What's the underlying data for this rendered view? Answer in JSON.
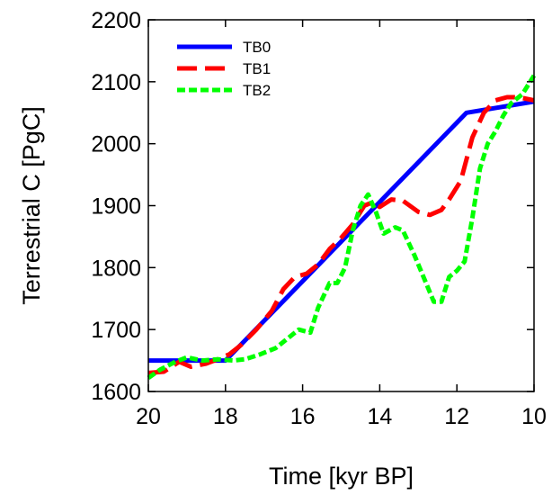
{
  "chart_data": {
    "type": "line",
    "xlabel": "Time [kyr BP]",
    "ylabel": "Terrestrial C [PgC]",
    "xlim": [
      20,
      10
    ],
    "ylim": [
      1600,
      2200
    ],
    "x_ticks": [
      "20",
      "18",
      "16",
      "14",
      "12",
      "10"
    ],
    "y_ticks": [
      "1600",
      "1700",
      "1800",
      "1900",
      "2000",
      "2100",
      "2200"
    ],
    "grid": false,
    "legend_position": "top-left",
    "series": [
      {
        "name": "TB0",
        "color": "#0000ff",
        "style": "solid",
        "x": [
          20,
          18,
          11.75,
          10
        ],
        "y": [
          1650,
          1650,
          2050,
          2068
        ]
      },
      {
        "name": "TB1",
        "color": "#ff0000",
        "style": "dashed",
        "x": [
          20,
          19.6,
          19.2,
          18.9,
          18.5,
          18.2,
          17.9,
          17.6,
          17.2,
          16.8,
          16.5,
          16.2,
          15.9,
          15.6,
          15.3,
          15.0,
          14.7,
          14.4,
          14.2,
          14.0,
          13.7,
          13.4,
          13.0,
          12.7,
          12.4,
          12.2,
          11.9,
          11.6,
          11.3,
          11.0,
          10.7,
          10.4,
          10.0
        ],
        "y": [
          1630,
          1632,
          1648,
          1640,
          1645,
          1652,
          1660,
          1675,
          1700,
          1730,
          1765,
          1785,
          1790,
          1805,
          1830,
          1848,
          1870,
          1900,
          1905,
          1898,
          1910,
          1908,
          1890,
          1885,
          1893,
          1910,
          1940,
          2010,
          2050,
          2070,
          2075,
          2075,
          2070
        ]
      },
      {
        "name": "TB2",
        "color": "#00ff00",
        "style": "dotted",
        "x": [
          20,
          19.7,
          19.3,
          19.0,
          18.6,
          18.2,
          17.8,
          17.5,
          17.1,
          16.7,
          16.3,
          16.1,
          15.8,
          15.6,
          15.3,
          15.1,
          14.9,
          14.7,
          14.5,
          14.3,
          14.1,
          13.9,
          13.6,
          13.4,
          13.1,
          12.9,
          12.6,
          12.4,
          12.2,
          12.0,
          11.8,
          11.6,
          11.4,
          11.2,
          11.0,
          10.8,
          10.6,
          10.3,
          10.0
        ],
        "y": [
          1622,
          1635,
          1648,
          1655,
          1650,
          1652,
          1650,
          1652,
          1660,
          1670,
          1690,
          1700,
          1695,
          1735,
          1775,
          1775,
          1800,
          1860,
          1900,
          1918,
          1890,
          1855,
          1865,
          1860,
          1820,
          1790,
          1745,
          1745,
          1785,
          1795,
          1810,
          1880,
          1960,
          2000,
          2020,
          2045,
          2065,
          2080,
          2110
        ]
      }
    ]
  }
}
